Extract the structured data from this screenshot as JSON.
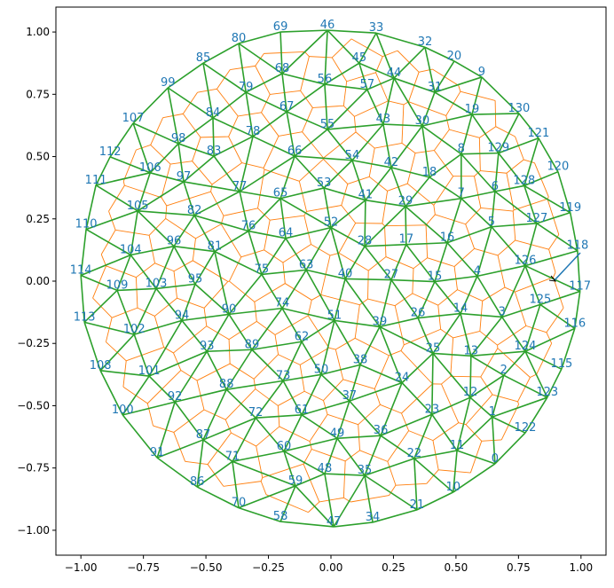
{
  "chart_data": {
    "type": "triangulation",
    "labels": [
      "0",
      "1",
      "2",
      "3",
      "4",
      "5",
      "6",
      "7",
      "8",
      "9",
      "10",
      "11",
      "12",
      "13",
      "14",
      "15",
      "16",
      "17",
      "18",
      "19",
      "20",
      "21",
      "22",
      "23",
      "24",
      "25",
      "26",
      "27",
      "28",
      "29",
      "30",
      "31",
      "32",
      "33",
      "34",
      "35",
      "36",
      "37",
      "38",
      "39",
      "40",
      "41",
      "42",
      "43",
      "44",
      "45",
      "46",
      "47",
      "48",
      "49",
      "50",
      "51",
      "52",
      "53",
      "54",
      "55",
      "56",
      "57",
      "58",
      "59",
      "60",
      "61",
      "62",
      "63",
      "64",
      "65",
      "66",
      "67",
      "68",
      "69",
      "70",
      "71",
      "72",
      "73",
      "74",
      "75",
      "76",
      "77",
      "78",
      "79",
      "80",
      "81",
      "82",
      "83",
      "84",
      "85",
      "86",
      "87",
      "88",
      "89",
      "90",
      "91",
      "92",
      "93",
      "94",
      "95",
      "96",
      "97",
      "98",
      "99",
      "100",
      "101",
      "102",
      "103",
      "104",
      "105",
      "106",
      "107",
      "108",
      "109",
      "110",
      "111",
      "112",
      "113",
      "114",
      "115",
      "116",
      "117",
      "118",
      "119",
      "120",
      "121",
      "122",
      "123",
      "124",
      "125",
      "126",
      "127",
      "128",
      "129",
      "130"
    ],
    "x": [
      0.656,
      0.645,
      0.691,
      0.684,
      0.585,
      0.642,
      0.656,
      0.521,
      0.521,
      0.603,
      0.489,
      0.504,
      0.557,
      0.56,
      0.518,
      0.415,
      0.465,
      0.301,
      0.394,
      0.564,
      0.493,
      0.344,
      0.333,
      0.404,
      0.284,
      0.408,
      0.348,
      0.241,
      0.135,
      0.298,
      0.365,
      0.415,
      0.376,
      0.181,
      0.167,
      0.135,
      0.199,
      0.074,
      0.117,
      0.195,
      0.057,
      0.138,
      0.241,
      0.209,
      0.252,
      0.113,
      -0.014,
      0.011,
      -0.025,
      0.025,
      -0.039,
      0.014,
      0.0,
      -0.028,
      0.085,
      -0.014,
      -0.025,
      0.145,
      -0.202,
      -0.142,
      -0.188,
      -0.117,
      -0.117,
      -0.099,
      -0.181,
      -0.202,
      -0.145,
      -0.177,
      -0.195,
      -0.202,
      -0.369,
      -0.394,
      -0.301,
      -0.191,
      -0.195,
      -0.277,
      -0.33,
      -0.365,
      -0.312,
      -0.34,
      -0.369,
      -0.465,
      -0.546,
      -0.468,
      -0.472,
      -0.511,
      -0.535,
      -0.511,
      -0.418,
      -0.316,
      -0.408,
      -0.695,
      -0.624,
      -0.496,
      -0.596,
      -0.543,
      -0.628,
      -0.589,
      -0.61,
      -0.652,
      -0.833,
      -0.727,
      -0.787,
      -0.699,
      -0.801,
      -0.773,
      -0.723,
      -0.791,
      -0.922,
      -0.855,
      -0.979,
      -0.94,
      -0.883,
      -0.986,
      -1.0,
      0.922,
      0.975,
      0.996,
      0.986,
      0.957,
      0.908,
      0.83,
      0.777,
      0.865,
      0.777,
      0.837,
      0.777,
      0.823,
      0.773,
      0.67,
      0.752
    ],
    "y": [
      -0.733,
      -0.545,
      -0.378,
      -0.144,
      0.02,
      0.218,
      0.36,
      0.332,
      0.51,
      0.819,
      -0.847,
      -0.68,
      -0.467,
      -0.3,
      -0.13,
      -0.002,
      0.154,
      0.147,
      0.417,
      0.669,
      0.883,
      -0.918,
      -0.712,
      -0.535,
      -0.408,
      -0.29,
      -0.148,
      0.005,
      0.14,
      0.3,
      0.623,
      0.758,
      0.939,
      0.996,
      -0.968,
      -0.78,
      -0.62,
      -0.481,
      -0.336,
      -0.183,
      0.009,
      0.325,
      0.456,
      0.63,
      0.815,
      0.875,
      1.007,
      -0.986,
      -0.773,
      -0.631,
      -0.375,
      -0.158,
      0.215,
      0.374,
      0.485,
      0.609,
      0.79,
      0.769,
      -0.965,
      -0.822,
      -0.683,
      -0.537,
      -0.243,
      0.045,
      0.172,
      0.332,
      0.502,
      0.68,
      0.833,
      1.0,
      -0.91,
      -0.724,
      -0.549,
      -0.4,
      -0.109,
      0.027,
      0.201,
      0.36,
      0.581,
      0.758,
      0.954,
      0.119,
      0.264,
      0.502,
      0.655,
      0.875,
      -0.826,
      -0.637,
      -0.435,
      -0.275,
      -0.133,
      -0.709,
      -0.485,
      -0.282,
      -0.158,
      -0.012,
      0.14,
      0.399,
      0.552,
      0.776,
      -0.537,
      -0.381,
      -0.214,
      -0.03,
      0.105,
      0.282,
      0.435,
      0.634,
      -0.359,
      -0.037,
      0.208,
      0.385,
      0.499,
      -0.165,
      0.023,
      -0.353,
      -0.19,
      -0.041,
      0.122,
      0.275,
      0.439,
      0.574,
      -0.609,
      -0.467,
      -0.282,
      -0.094,
      0.062,
      0.232,
      0.383,
      0.514,
      0.673
    ],
    "label_color": "#1f77b4",
    "edge_color": "#2ca02c",
    "cell_color": "#ff7f0e",
    "xlim": [
      -1.1,
      1.1
    ],
    "ylim": [
      -1.1,
      1.1
    ],
    "xticks": [
      {
        "value": -1,
        "label": "−1.00"
      },
      {
        "value": -0.75,
        "label": "−0.75"
      },
      {
        "value": -0.5,
        "label": "−0.50"
      },
      {
        "value": -0.25,
        "label": "−0.25"
      },
      {
        "value": 0,
        "label": "0.00"
      },
      {
        "value": 0.25,
        "label": "0.25"
      },
      {
        "value": 0.5,
        "label": "0.50"
      },
      {
        "value": 0.75,
        "label": "0.75"
      },
      {
        "value": 1,
        "label": "1.00"
      }
    ],
    "yticks": [
      {
        "value": -1,
        "label": "−1.00"
      },
      {
        "value": -0.75,
        "label": "−0.75"
      },
      {
        "value": -0.5,
        "label": "−0.50"
      },
      {
        "value": -0.25,
        "label": "−0.25"
      },
      {
        "value": 0,
        "label": "0.00"
      },
      {
        "value": 0.25,
        "label": "0.25"
      },
      {
        "value": 0.5,
        "label": "0.50"
      },
      {
        "value": 0.75,
        "label": "0.75"
      },
      {
        "value": 1,
        "label": "1.00"
      }
    ]
  }
}
